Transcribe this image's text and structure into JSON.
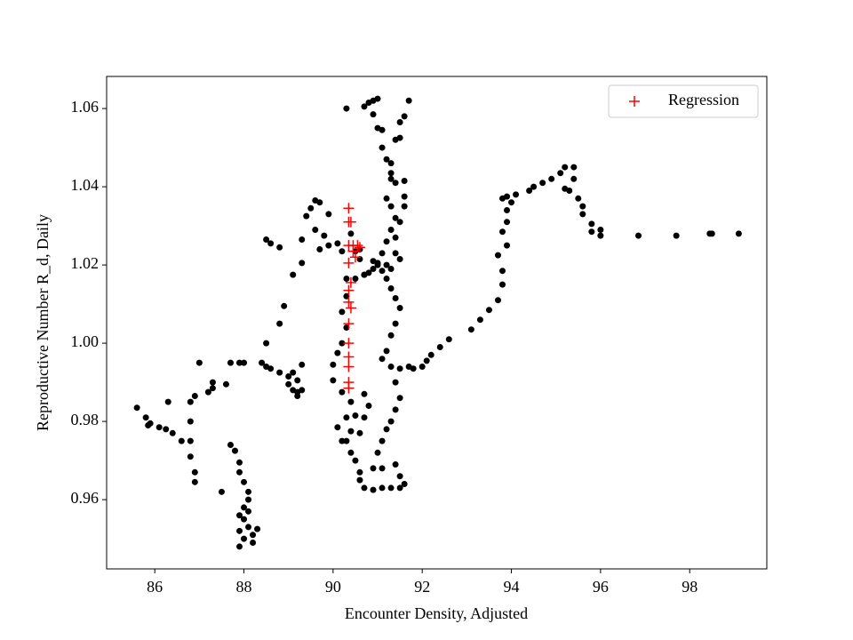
{
  "chart_data": {
    "type": "scatter",
    "xlabel": "Encounter Density, Adjusted",
    "ylabel": "Reproductive Number R_d, Daily",
    "xlim": [
      84.92,
      99.73
    ],
    "ylim": [
      0.9423,
      1.0682
    ],
    "xticks": [
      86,
      88,
      90,
      92,
      94,
      96,
      98
    ],
    "yticks": [
      0.96,
      0.98,
      {
        "value": 1.0,
        "label": "1.00"
      },
      1.02,
      1.04,
      1.06
    ],
    "legend": "upper right",
    "series": [
      {
        "color": "#000000",
        "marker": "circle",
        "x": [
          85.6,
          85.8,
          85.85,
          85.9,
          86.1,
          86.25,
          86.4,
          86.6,
          86.8,
          86.8,
          86.9,
          86.9,
          86.3,
          86.8,
          86.8,
          86.9,
          87.0,
          87.2,
          87.3,
          87.3,
          87.5,
          87.6,
          87.7,
          87.9,
          88.0,
          87.7,
          87.8,
          87.9,
          87.9,
          88.0,
          88.1,
          88.1,
          88.0,
          87.9,
          87.9,
          87.9,
          88.0,
          88.1,
          88.2,
          88.2,
          88.3,
          88.1,
          88.0,
          88.4,
          88.5,
          88.6,
          88.8,
          88.5,
          88.8,
          88.9,
          89.1,
          89.3,
          89.3,
          88.5,
          88.6,
          88.8,
          89.4,
          89.5,
          89.6,
          89.7,
          89.9,
          89.8,
          89.7,
          89.6,
          89.9,
          90.1,
          90.2,
          89.0,
          89.1,
          89.2,
          89.0,
          89.1,
          89.2,
          89.3,
          89.2,
          89.3,
          90.3,
          90.7,
          90.8,
          90.9,
          91.0,
          90.9,
          91.0,
          91.1,
          91.1,
          91.2,
          91.3,
          91.3,
          91.2,
          91.3,
          91.4,
          91.3,
          91.2,
          91.1,
          91.0,
          90.9,
          90.8,
          90.7,
          91.2,
          91.5,
          91.7,
          91.6,
          91.5,
          91.5,
          91.4,
          91.3,
          91.4,
          91.6,
          91.6,
          91.6,
          91.5,
          91.4,
          91.4,
          91.3,
          91.2,
          91.3,
          91.4,
          91.5,
          91.4,
          91.3,
          91.2,
          91.1,
          91.3,
          91.4,
          91.5,
          91.4,
          91.3,
          91.2,
          91.1,
          91.0,
          90.9,
          91.1,
          91.4,
          91.5,
          91.6,
          91.5,
          91.3,
          91.1,
          90.9,
          90.7,
          90.6,
          90.6,
          90.5,
          90.4,
          90.3,
          90.2,
          90.1,
          90.3,
          90.4,
          90.6,
          90.7,
          90.8,
          90.7,
          90.5,
          90.4,
          90.2,
          90.0,
          90.0,
          90.1,
          90.2,
          90.3,
          90.2,
          90.3,
          90.3,
          90.5,
          90.6,
          90.6,
          90.5,
          90.7,
          90.4,
          91.5,
          91.7,
          92.0,
          92.1,
          92.2,
          92.4,
          92.6,
          93.1,
          93.3,
          93.5,
          93.7,
          93.8,
          93.8,
          93.7,
          93.9,
          93.8,
          93.9,
          93.9,
          93.8,
          93.9,
          94.1,
          94.0,
          94.4,
          94.5,
          94.7,
          94.9,
          95.1,
          95.2,
          95.4,
          95.4,
          95.2,
          95.3,
          95.5,
          95.6,
          95.6,
          95.8,
          95.8,
          96.0,
          96.0,
          96.85,
          97.7,
          98.45,
          98.5,
          99.1,
          91.8,
          91.0,
          90.9,
          91.1
        ],
        "values": [
          0.9835,
          0.981,
          0.979,
          0.9795,
          0.9785,
          0.978,
          0.977,
          0.975,
          0.975,
          0.971,
          0.967,
          0.9645,
          0.985,
          0.98,
          0.985,
          0.9865,
          0.995,
          0.9875,
          0.9885,
          0.99,
          0.962,
          0.9895,
          0.995,
          0.995,
          0.995,
          0.974,
          0.9725,
          0.9695,
          0.967,
          0.9645,
          0.962,
          0.96,
          0.958,
          0.956,
          0.952,
          0.948,
          0.95,
          0.953,
          0.949,
          0.951,
          0.9525,
          0.957,
          0.955,
          0.995,
          0.994,
          0.9935,
          0.9925,
          1.0,
          1.005,
          1.0095,
          1.0175,
          1.0205,
          1.0265,
          1.0265,
          1.0255,
          1.0245,
          1.0325,
          1.0345,
          1.0365,
          1.036,
          1.033,
          1.0275,
          1.024,
          1.029,
          1.025,
          1.0255,
          1.0235,
          0.9895,
          0.988,
          0.9875,
          0.9915,
          0.9925,
          0.9905,
          0.988,
          0.9865,
          0.9945,
          1.06,
          1.0605,
          1.0615,
          1.062,
          1.0625,
          1.0585,
          1.055,
          1.0545,
          1.05,
          1.047,
          1.0435,
          1.042,
          1.037,
          1.035,
          1.032,
          1.029,
          1.026,
          1.023,
          1.02,
          1.019,
          1.018,
          1.0175,
          1.02,
          1.0215,
          1.062,
          1.058,
          1.0565,
          1.0525,
          1.052,
          1.046,
          1.041,
          1.0415,
          1.0375,
          1.035,
          1.031,
          1.027,
          1.023,
          1.019,
          1.0165,
          1.014,
          1.0115,
          1.009,
          1.005,
          1.002,
          0.998,
          0.996,
          0.994,
          0.99,
          0.986,
          0.983,
          0.98,
          0.978,
          0.975,
          0.972,
          0.968,
          0.968,
          0.969,
          0.966,
          0.964,
          0.963,
          0.963,
          0.963,
          0.9625,
          0.963,
          0.965,
          0.967,
          0.97,
          0.972,
          0.975,
          0.975,
          0.9785,
          0.981,
          0.9775,
          0.977,
          0.981,
          0.984,
          0.987,
          0.9815,
          0.985,
          0.9875,
          0.9905,
          0.9945,
          0.9975,
          1.0,
          1.004,
          1.008,
          1.012,
          1.0165,
          1.0165,
          1.0215,
          1.024,
          1.0235,
          1.0175,
          1.028,
          0.9935,
          0.994,
          0.994,
          0.9955,
          0.997,
          0.999,
          1.001,
          1.0035,
          1.006,
          1.0085,
          1.011,
          1.015,
          1.0185,
          1.0225,
          1.025,
          1.0285,
          1.031,
          1.034,
          1.037,
          1.0375,
          1.038,
          1.036,
          1.039,
          1.04,
          1.041,
          1.042,
          1.0435,
          1.045,
          1.045,
          1.042,
          1.0395,
          1.039,
          1.037,
          1.035,
          1.033,
          1.0305,
          1.0285,
          1.029,
          1.0275,
          1.0275,
          1.0275,
          1.028,
          1.028,
          1.028,
          0.9935,
          1.0205,
          1.021,
          1.0185
        ]
      },
      {
        "name": "Regression",
        "color": "#ff0000",
        "marker": "plus",
        "x": [
          90.35,
          90.35,
          90.4,
          90.35,
          90.45,
          90.55,
          90.6,
          90.35,
          90.4,
          90.35,
          90.35,
          90.4,
          90.35,
          90.35,
          90.35,
          90.35,
          90.35,
          90.35,
          90.45,
          90.5
        ],
        "values": [
          1.0345,
          1.031,
          1.031,
          1.025,
          1.025,
          1.025,
          1.0245,
          1.0205,
          1.0155,
          1.0135,
          1.0105,
          1.009,
          1.005,
          1.0,
          0.9965,
          0.994,
          0.99,
          0.9885,
          1.0235,
          1.022
        ]
      }
    ]
  }
}
